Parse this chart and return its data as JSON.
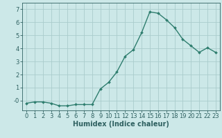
{
  "x": [
    0,
    1,
    2,
    3,
    4,
    5,
    6,
    7,
    8,
    9,
    10,
    11,
    12,
    13,
    14,
    15,
    16,
    17,
    18,
    19,
    20,
    21,
    22,
    23
  ],
  "y": [
    -0.2,
    -0.1,
    -0.1,
    -0.2,
    -0.4,
    -0.4,
    -0.3,
    -0.3,
    -0.3,
    0.9,
    1.4,
    2.2,
    3.4,
    3.9,
    5.2,
    6.8,
    6.7,
    6.2,
    5.6,
    4.7,
    4.2,
    3.7,
    4.05,
    3.7
  ],
  "line_color": "#2e7d6e",
  "marker": "D",
  "marker_size": 2.0,
  "bg_color": "#cce8e8",
  "grid_color": "#aacccc",
  "xlabel": "Humidex (Indice chaleur)",
  "xlim": [
    -0.5,
    23.5
  ],
  "ylim": [
    -0.75,
    7.5
  ],
  "yticks": [
    0,
    1,
    2,
    3,
    4,
    5,
    6,
    7
  ],
  "ytick_labels": [
    "-0",
    "1",
    "2",
    "3",
    "4",
    "5",
    "6",
    "7"
  ],
  "xticks": [
    0,
    1,
    2,
    3,
    4,
    5,
    6,
    7,
    8,
    9,
    10,
    11,
    12,
    13,
    14,
    15,
    16,
    17,
    18,
    19,
    20,
    21,
    22,
    23
  ],
  "font_color": "#2e6060",
  "xlabel_fontsize": 7,
  "tick_fontsize": 6,
  "line_width": 1.0
}
